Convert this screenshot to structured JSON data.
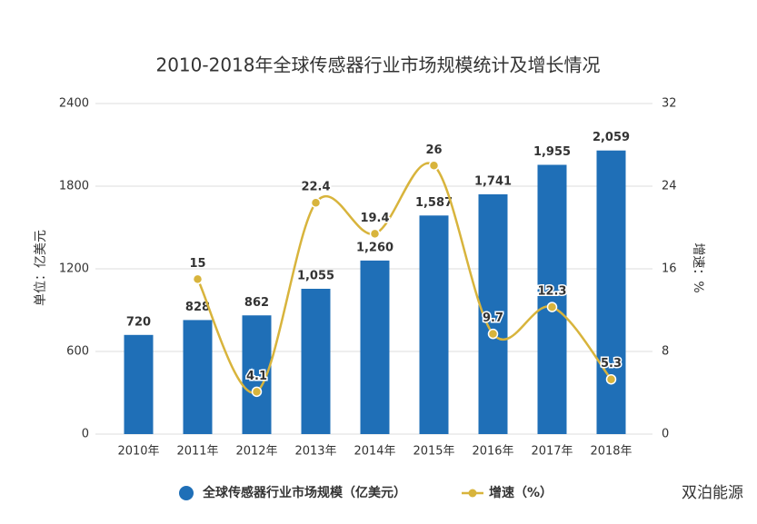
{
  "chart_data": {
    "type": "bar-line",
    "title": "2010-2018年全球传感器行业市场规模统计及增长情况",
    "y_label": "单位：亿美元",
    "y2_label": "增速：%",
    "categories": [
      "2010年",
      "2011年",
      "2012年",
      "2013年",
      "2014年",
      "2015年",
      "2016年",
      "2017年",
      "2018年"
    ],
    "series": [
      {
        "name": "全球传感器行业市场规模（亿美元）",
        "type": "bar",
        "color": "#1f6fb7",
        "values": [
          720,
          828,
          862,
          1055,
          1260,
          1587,
          1741,
          1955,
          2059
        ],
        "value_labels": [
          "720",
          "828",
          "862",
          "1,055",
          "1,260",
          "1,587",
          "1,741",
          "1,955",
          "2,059"
        ]
      },
      {
        "name": "增速（%）",
        "type": "line",
        "axis": "y2",
        "color": "#d8b43c",
        "values": [
          null,
          15,
          4.1,
          22.4,
          19.4,
          26,
          9.7,
          12.3,
          5.3
        ]
      }
    ],
    "ylim": [
      0,
      2400
    ],
    "yticks": [
      0,
      600,
      1200,
      1800,
      2400
    ],
    "y2lim": [
      0,
      32
    ],
    "y2ticks": [
      0,
      8,
      16,
      24,
      32
    ],
    "grid": true
  },
  "watermark": "双泊能源"
}
